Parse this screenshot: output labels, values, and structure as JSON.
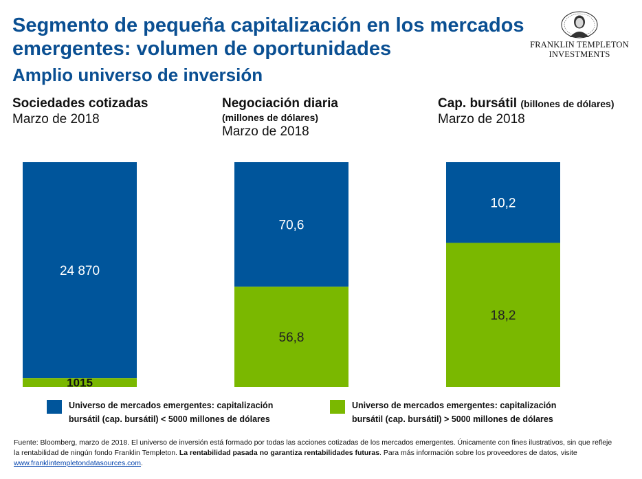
{
  "header": {
    "title": "Segmento de pequeña capitalización en los mercados emergentes: volumen de oportunidades",
    "subtitle": "Amplio universo de inversión"
  },
  "logo": {
    "line1": "FRANKLIN TEMPLETON",
    "line2": "INVESTMENTS"
  },
  "panels": [
    {
      "title": "Sociedades cotizadas",
      "unit": "",
      "date": "Marzo de 2018"
    },
    {
      "title": "Negociación diaria",
      "unit": "(millones de dólares)",
      "date": "Marzo de 2018"
    },
    {
      "title": "Cap. bursátil",
      "unit": "(billones de dólares)",
      "date": "Marzo de 2018"
    }
  ],
  "legend": [
    {
      "label": "Universo de mercados emergentes: capitalización bursátil (cap. bursátil) < 5000 millones de dólares",
      "color": "#00559b"
    },
    {
      "label": "Universo de mercados emergentes: capitalización bursátil (cap. bursátil) > 5000 millones de dólares",
      "color": "#7ab800"
    }
  ],
  "footer": {
    "text1": "Fuente: Bloomberg, marzo de 2018. El universo de inversión está formado por todas las acciones cotizadas de los mercados emergentes. Únicamente con fines ilustrativos, sin que refleje la rentabilidad de ningún fondo Franklin Templeton. ",
    "bold": "La rentabilidad pasada no garantiza rentabilidades futuras",
    "text2": ". Para más información sobre los proveedores de datos, visite ",
    "link": "www.franklintempletondatasources.com",
    "text3": "."
  },
  "chart_data": {
    "type": "bar",
    "stacked": true,
    "normalized": true,
    "categories": [
      "Sociedades cotizadas",
      "Negociación diaria",
      "Cap. bursátil"
    ],
    "series": [
      {
        "name": "Universo de mercados emergentes: capitalización bursátil (cap. bursátil) > 5000 millones de dólares",
        "values": [
          1015,
          56.8,
          18.2
        ],
        "labels": [
          "1015",
          "56,8",
          "18,2"
        ],
        "color": "#7ab800"
      },
      {
        "name": "Universo de mercados emergentes: capitalización bursátil (cap. bursátil) < 5000 millones de dólares",
        "values": [
          24870,
          70.6,
          10.2
        ],
        "labels": [
          "24 870",
          "70,6",
          "10,2"
        ],
        "color": "#00559b"
      }
    ]
  }
}
